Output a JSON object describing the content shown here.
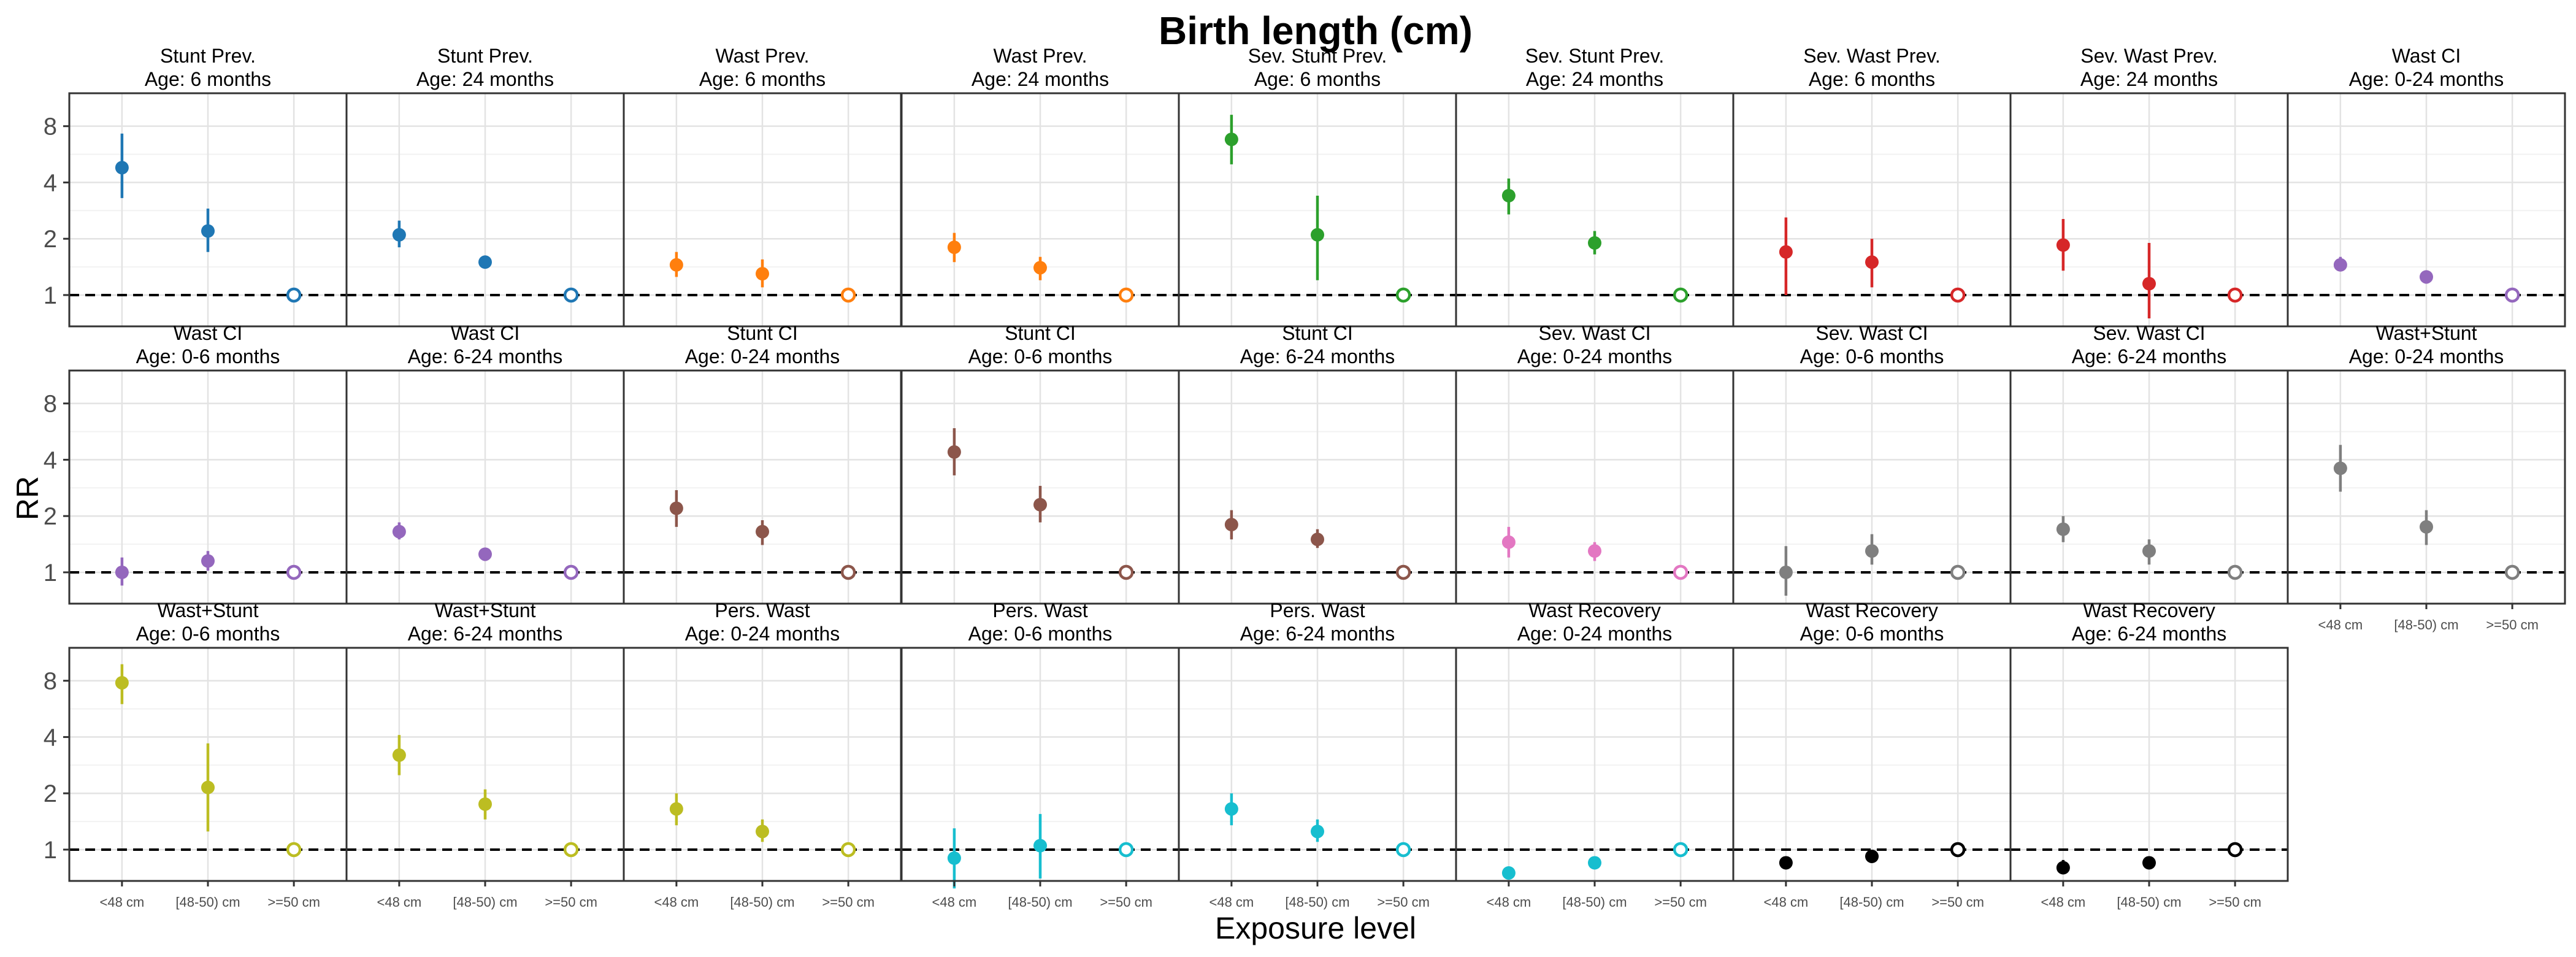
{
  "chart_data": {
    "type": "scatter",
    "title": "Birth length (cm)",
    "xlabel": "Exposure level",
    "ylabel": "RR",
    "y_scale": "log2",
    "ylim": [
      0.68,
      12
    ],
    "yticks": [
      1,
      2,
      4,
      8
    ],
    "ytick_labels": [
      "1",
      "2",
      "4",
      "8"
    ],
    "reference_line": 1,
    "grid": true,
    "categories": [
      "<48 cm",
      "[48-50) cm",
      ">=50 cm"
    ],
    "panels": [
      {
        "title": "Stunt Prev.",
        "subtitle": "Age: 6 months",
        "color": "#1f77b4",
        "points": [
          {
            "est": 4.8,
            "lo": 3.3,
            "hi": 7.3
          },
          {
            "est": 2.2,
            "lo": 1.7,
            "hi": 2.9
          },
          {
            "est": 1,
            "lo": 1,
            "hi": 1
          }
        ]
      },
      {
        "title": "Stunt Prev.",
        "subtitle": "Age: 24 months",
        "color": "#1f77b4",
        "points": [
          {
            "est": 2.1,
            "lo": 1.8,
            "hi": 2.5
          },
          {
            "est": 1.5,
            "lo": 1.4,
            "hi": 1.6
          },
          {
            "est": 1,
            "lo": 1,
            "hi": 1
          }
        ]
      },
      {
        "title": "Wast Prev.",
        "subtitle": "Age: 6 months",
        "color": "#ff7f0e",
        "points": [
          {
            "est": 1.45,
            "lo": 1.25,
            "hi": 1.7
          },
          {
            "est": 1.3,
            "lo": 1.1,
            "hi": 1.55
          },
          {
            "est": 1,
            "lo": 1,
            "hi": 1
          }
        ]
      },
      {
        "title": "Wast Prev.",
        "subtitle": "Age: 24 months",
        "color": "#ff7f0e",
        "points": [
          {
            "est": 1.8,
            "lo": 1.5,
            "hi": 2.15
          },
          {
            "est": 1.4,
            "lo": 1.2,
            "hi": 1.6
          },
          {
            "est": 1,
            "lo": 1,
            "hi": 1
          }
        ]
      },
      {
        "title": "Sev. Stunt Prev.",
        "subtitle": "Age: 6 months",
        "color": "#2ca02c",
        "points": [
          {
            "est": 6.8,
            "lo": 5.0,
            "hi": 9.2
          },
          {
            "est": 2.1,
            "lo": 1.2,
            "hi": 3.4
          },
          {
            "est": 1,
            "lo": 1,
            "hi": 1
          }
        ]
      },
      {
        "title": "Sev. Stunt Prev.",
        "subtitle": "Age: 24 months",
        "color": "#2ca02c",
        "points": [
          {
            "est": 3.4,
            "lo": 2.7,
            "hi": 4.2
          },
          {
            "est": 1.9,
            "lo": 1.65,
            "hi": 2.2
          },
          {
            "est": 1,
            "lo": 1,
            "hi": 1
          }
        ]
      },
      {
        "title": "Sev. Wast Prev.",
        "subtitle": "Age: 6 months",
        "color": "#d62728",
        "points": [
          {
            "est": 1.7,
            "lo": 1.0,
            "hi": 2.6
          },
          {
            "est": 1.5,
            "lo": 1.1,
            "hi": 2.0
          },
          {
            "est": 1,
            "lo": 1,
            "hi": 1
          }
        ]
      },
      {
        "title": "Sev. Wast Prev.",
        "subtitle": "Age: 24 months",
        "color": "#d62728",
        "points": [
          {
            "est": 1.85,
            "lo": 1.35,
            "hi": 2.55
          },
          {
            "est": 1.15,
            "lo": 0.75,
            "hi": 1.9
          },
          {
            "est": 1,
            "lo": 1,
            "hi": 1
          }
        ]
      },
      {
        "title": "Wast CI",
        "subtitle": "Age: 0-24 months",
        "color": "#9467bd",
        "points": [
          {
            "est": 1.45,
            "lo": 1.35,
            "hi": 1.6
          },
          {
            "est": 1.25,
            "lo": 1.15,
            "hi": 1.35
          },
          {
            "est": 1,
            "lo": 1,
            "hi": 1
          }
        ]
      },
      {
        "title": "Wast CI",
        "subtitle": "Age: 0-6 months",
        "color": "#9467bd",
        "points": [
          {
            "est": 1.0,
            "lo": 0.85,
            "hi": 1.2
          },
          {
            "est": 1.15,
            "lo": 1.02,
            "hi": 1.3
          },
          {
            "est": 1,
            "lo": 1,
            "hi": 1
          }
        ]
      },
      {
        "title": "Wast CI",
        "subtitle": "Age: 6-24 months",
        "color": "#9467bd",
        "points": [
          {
            "est": 1.65,
            "lo": 1.5,
            "hi": 1.85
          },
          {
            "est": 1.25,
            "lo": 1.15,
            "hi": 1.35
          },
          {
            "est": 1,
            "lo": 1,
            "hi": 1
          }
        ]
      },
      {
        "title": "Stunt CI",
        "subtitle": "Age: 0-24 months",
        "color": "#8c564b",
        "points": [
          {
            "est": 2.2,
            "lo": 1.75,
            "hi": 2.75
          },
          {
            "est": 1.65,
            "lo": 1.4,
            "hi": 1.9
          },
          {
            "est": 1,
            "lo": 1,
            "hi": 1
          }
        ]
      },
      {
        "title": "Stunt CI",
        "subtitle": "Age: 0-6 months",
        "color": "#8c564b",
        "points": [
          {
            "est": 4.4,
            "lo": 3.3,
            "hi": 5.9
          },
          {
            "est": 2.3,
            "lo": 1.85,
            "hi": 2.9
          },
          {
            "est": 1,
            "lo": 1,
            "hi": 1
          }
        ]
      },
      {
        "title": "Stunt CI",
        "subtitle": "Age: 6-24 months",
        "color": "#8c564b",
        "points": [
          {
            "est": 1.8,
            "lo": 1.5,
            "hi": 2.15
          },
          {
            "est": 1.5,
            "lo": 1.35,
            "hi": 1.7
          },
          {
            "est": 1,
            "lo": 1,
            "hi": 1
          }
        ]
      },
      {
        "title": "Sev. Wast CI",
        "subtitle": "Age: 0-24 months",
        "color": "#e377c2",
        "points": [
          {
            "est": 1.45,
            "lo": 1.2,
            "hi": 1.75
          },
          {
            "est": 1.3,
            "lo": 1.15,
            "hi": 1.45
          },
          {
            "est": 1,
            "lo": 1,
            "hi": 1
          }
        ]
      },
      {
        "title": "Sev. Wast CI",
        "subtitle": "Age: 0-6 months",
        "color": "#7f7f7f",
        "points": [
          {
            "est": 1.0,
            "lo": 0.75,
            "hi": 1.38
          },
          {
            "est": 1.3,
            "lo": 1.1,
            "hi": 1.6
          },
          {
            "est": 1,
            "lo": 1,
            "hi": 1
          }
        ]
      },
      {
        "title": "Sev. Wast CI",
        "subtitle": "Age: 6-24 months",
        "color": "#7f7f7f",
        "points": [
          {
            "est": 1.7,
            "lo": 1.45,
            "hi": 2.0
          },
          {
            "est": 1.3,
            "lo": 1.1,
            "hi": 1.5
          },
          {
            "est": 1,
            "lo": 1,
            "hi": 1
          }
        ]
      },
      {
        "title": "Wast+Stunt",
        "subtitle": "Age: 0-24 months",
        "color": "#7f7f7f",
        "points": [
          {
            "est": 3.6,
            "lo": 2.7,
            "hi": 4.8
          },
          {
            "est": 1.75,
            "lo": 1.4,
            "hi": 2.15
          },
          {
            "est": 1,
            "lo": 1,
            "hi": 1
          }
        ]
      },
      {
        "title": "Wast+Stunt",
        "subtitle": "Age: 0-6 months",
        "color": "#bcbd22",
        "points": [
          {
            "est": 7.8,
            "lo": 6.0,
            "hi": 9.8
          },
          {
            "est": 2.15,
            "lo": 1.25,
            "hi": 3.7
          },
          {
            "est": 1,
            "lo": 1,
            "hi": 1
          }
        ]
      },
      {
        "title": "Wast+Stunt",
        "subtitle": "Age: 6-24 months",
        "color": "#bcbd22",
        "points": [
          {
            "est": 3.2,
            "lo": 2.5,
            "hi": 4.1
          },
          {
            "est": 1.75,
            "lo": 1.45,
            "hi": 2.1
          },
          {
            "est": 1,
            "lo": 1,
            "hi": 1
          }
        ]
      },
      {
        "title": "Pers. Wast",
        "subtitle": "Age: 0-24 months",
        "color": "#bcbd22",
        "points": [
          {
            "est": 1.65,
            "lo": 1.35,
            "hi": 2.0
          },
          {
            "est": 1.25,
            "lo": 1.1,
            "hi": 1.45
          },
          {
            "est": 1,
            "lo": 1,
            "hi": 1
          }
        ]
      },
      {
        "title": "Pers. Wast",
        "subtitle": "Age: 0-6 months",
        "color": "#17becf",
        "points": [
          {
            "est": 0.9,
            "lo": 0.62,
            "hi": 1.3
          },
          {
            "est": 1.05,
            "lo": 0.7,
            "hi": 1.55
          },
          {
            "est": 1,
            "lo": 1,
            "hi": 1
          }
        ]
      },
      {
        "title": "Pers. Wast",
        "subtitle": "Age: 6-24 months",
        "color": "#17becf",
        "points": [
          {
            "est": 1.65,
            "lo": 1.35,
            "hi": 2.0
          },
          {
            "est": 1.25,
            "lo": 1.1,
            "hi": 1.45
          },
          {
            "est": 1,
            "lo": 1,
            "hi": 1
          }
        ]
      },
      {
        "title": "Wast Recovery",
        "subtitle": "Age: 0-24 months",
        "color": "#17becf",
        "points": [
          {
            "est": 0.75,
            "lo": 0.72,
            "hi": 0.78
          },
          {
            "est": 0.85,
            "lo": 0.82,
            "hi": 0.88
          },
          {
            "est": 1,
            "lo": 1,
            "hi": 1
          }
        ]
      },
      {
        "title": "Wast Recovery",
        "subtitle": "Age: 0-6 months",
        "color": "#000000",
        "points": [
          {
            "est": 0.85,
            "lo": 0.81,
            "hi": 0.89
          },
          {
            "est": 0.92,
            "lo": 0.88,
            "hi": 0.96
          },
          {
            "est": 1,
            "lo": 1,
            "hi": 1
          }
        ]
      },
      {
        "title": "Wast Recovery",
        "subtitle": "Age: 6-24 months",
        "color": "#000000",
        "points": [
          {
            "est": 0.8,
            "lo": 0.74,
            "hi": 0.88
          },
          {
            "est": 0.85,
            "lo": 0.8,
            "hi": 0.91
          },
          {
            "est": 1,
            "lo": 1,
            "hi": 1
          }
        ]
      }
    ]
  }
}
